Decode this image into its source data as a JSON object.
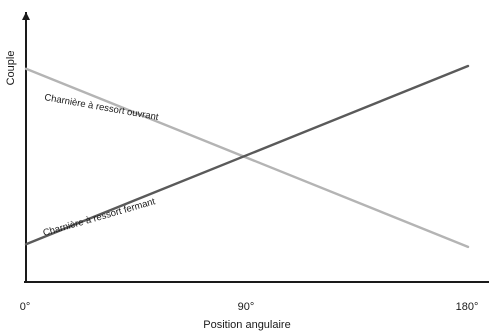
{
  "chart_data": {
    "type": "line",
    "xlabel": "Position angulaire",
    "ylabel": "Couple",
    "x_ticks": [
      "0°",
      "90°",
      "180°"
    ],
    "xlim": [
      0,
      180
    ],
    "ylim": [
      0,
      1
    ],
    "grid": false,
    "series": [
      {
        "name": "Charnière à ressort ouvrant",
        "color": "#b4b4b4",
        "points": [
          [
            0,
            0.79
          ],
          [
            180,
            0.13
          ]
        ]
      },
      {
        "name": "Charnière à ressort fermant",
        "color": "#5a5a5a",
        "points": [
          [
            0,
            0.14
          ],
          [
            180,
            0.8
          ]
        ]
      }
    ]
  }
}
